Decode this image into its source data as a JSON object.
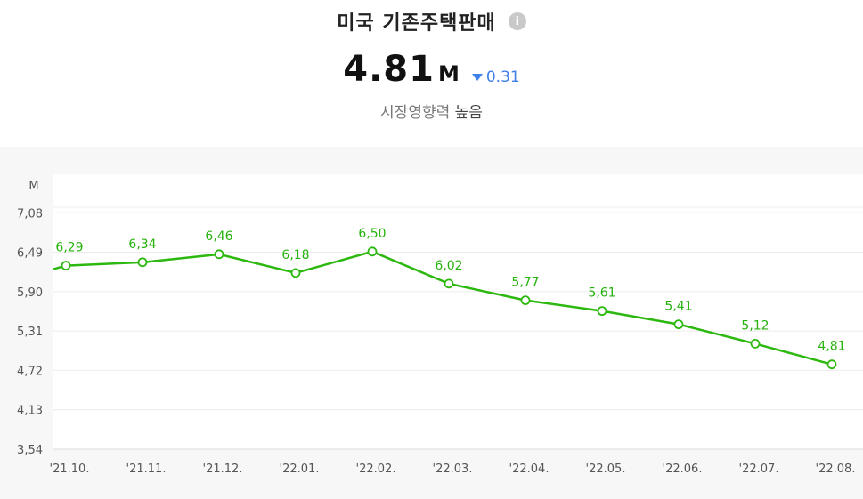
{
  "header": {
    "title": "미국 기존주택판매",
    "info_icon": "info-icon",
    "value": "4.81",
    "unit": "M",
    "change": "0.31",
    "change_direction": "down",
    "market_impact_label": "시장영향력",
    "market_impact_level": "높음"
  },
  "colors": {
    "line": "#2cb80f",
    "change": "#3f7fe8",
    "chart_bg": "#f7f7f7"
  },
  "chart_data": {
    "type": "line",
    "unit_label": "M",
    "categories": [
      "'21.10.",
      "'21.11.",
      "'21.12.",
      "'22.01.",
      "'22.02.",
      "'22.03.",
      "'22.04.",
      "'22.05.",
      "'22.06.",
      "'22.07.",
      "'22.08."
    ],
    "series": [
      {
        "values": [
          6.29,
          6.34,
          6.46,
          6.18,
          6.5,
          6.02,
          5.77,
          5.61,
          5.41,
          5.12,
          4.81
        ]
      }
    ],
    "data_labels": [
      "6,29",
      "6,34",
      "6,46",
      "6,18",
      "6,50",
      "6,02",
      "5,77",
      "5,61",
      "5,41",
      "5,12",
      "4,81"
    ],
    "y_ticks": [
      3.54,
      4.13,
      4.72,
      5.31,
      5.9,
      6.49,
      7.08
    ],
    "y_tick_labels": [
      "3,54",
      "4,13",
      "4,72",
      "5,31",
      "5,90",
      "6,49",
      "7,08"
    ],
    "ylim": [
      3.54,
      7.67
    ],
    "grid": true
  }
}
